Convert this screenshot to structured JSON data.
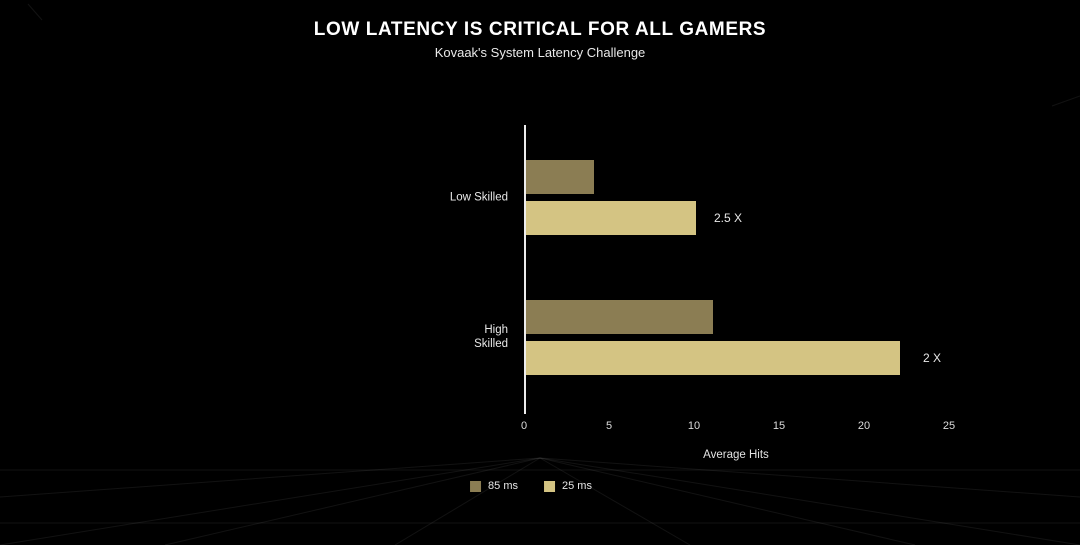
{
  "title": "LOW LATENCY IS CRITICAL FOR ALL GAMERS",
  "subtitle": "Kovaak's System Latency Challenge",
  "chart_data": {
    "type": "bar",
    "orientation": "horizontal",
    "categories": [
      "Low Skilled",
      "High Skilled"
    ],
    "category_labels": [
      "Low Skilled",
      "High\nSkilled"
    ],
    "series": [
      {
        "name": "85 ms",
        "color": "#8b7d53",
        "values": [
          4,
          11
        ]
      },
      {
        "name": "25 ms",
        "color": "#d4c483",
        "values": [
          10,
          22
        ]
      }
    ],
    "annotations": [
      {
        "text": "2.5 X",
        "category": "Low Skilled"
      },
      {
        "text": "2 X",
        "category": "High Skilled"
      }
    ],
    "xlabel": "Average Hits",
    "xticks": [
      "0",
      "5",
      "10",
      "15",
      "20",
      "25"
    ],
    "xlim": [
      0,
      25
    ],
    "grid": false,
    "legend_position": "bottom"
  },
  "colors": {
    "background": "#000000",
    "text": "#ffffff",
    "axis": "#ededed"
  }
}
